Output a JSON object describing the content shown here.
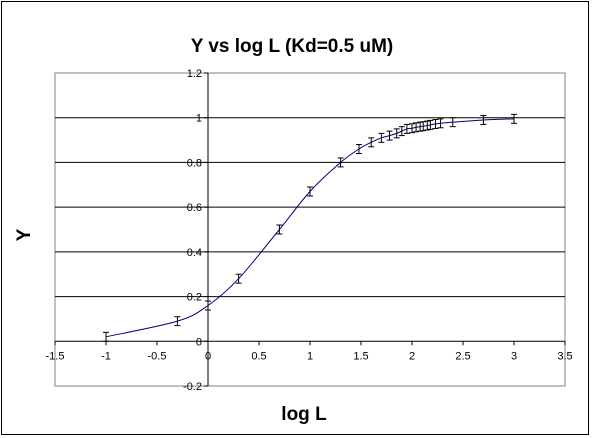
{
  "chart_data": {
    "type": "line",
    "title": "Y vs log L (Kd=0.5 uM)",
    "xlabel": "log L",
    "ylabel": "Y",
    "xlim": [
      -1.5,
      3.5
    ],
    "ylim": [
      -0.2,
      1.2
    ],
    "x_ticks": [
      "-1.5",
      "-1",
      "-0.5",
      "0",
      "0.5",
      "1",
      "1.5",
      "2",
      "2.5",
      "3",
      "3.5"
    ],
    "y_ticks": [
      "-0.2",
      "0",
      "0.2",
      "0.4",
      "0.6",
      "0.8",
      "1",
      "1.2"
    ],
    "grid": "horizontal",
    "legend": "none",
    "error_bar": 0.02,
    "line_color": "#000080",
    "series": [
      {
        "x": [
          -1,
          -0.3,
          0,
          0.3,
          0.7,
          1,
          1.3,
          1.48,
          1.6,
          1.7,
          1.78,
          1.85,
          1.9,
          1.95,
          2,
          2.04,
          2.08,
          2.11,
          2.15,
          2.18,
          2.23,
          2.28,
          2.4,
          2.7,
          3
        ],
        "y": [
          0.02,
          0.09,
          0.16,
          0.28,
          0.5,
          0.67,
          0.8,
          0.86,
          0.89,
          0.91,
          0.92,
          0.93,
          0.94,
          0.95,
          0.953,
          0.957,
          0.96,
          0.962,
          0.965,
          0.968,
          0.972,
          0.975,
          0.98,
          0.99,
          0.995
        ]
      }
    ]
  }
}
